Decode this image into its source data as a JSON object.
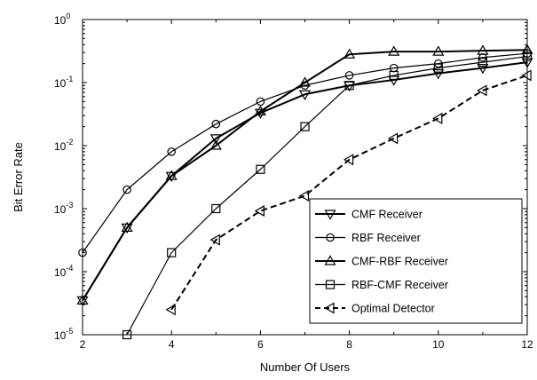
{
  "chart_data": {
    "type": "line",
    "xlabel": "Number Of Users",
    "ylabel": "Bit Error Rate",
    "xlim": [
      2,
      12
    ],
    "ylim": [
      1e-05,
      1
    ],
    "yscale": "log",
    "x_ticks": [
      2,
      4,
      6,
      8,
      10,
      12
    ],
    "y_ticks": [
      {
        "value": 1e-05,
        "base": "10",
        "exp": "-5"
      },
      {
        "value": 0.0001,
        "base": "10",
        "exp": "-4"
      },
      {
        "value": 0.001,
        "base": "10",
        "exp": "-3"
      },
      {
        "value": 0.01,
        "base": "10",
        "exp": "-2"
      },
      {
        "value": 0.1,
        "base": "10",
        "exp": "-1"
      },
      {
        "value": 1,
        "base": "10",
        "exp": "0"
      }
    ],
    "grid": false,
    "legend_position": "bottom-right",
    "series": [
      {
        "name": "CMF Receiver",
        "marker": "triangle-down",
        "dashed": false,
        "thick": true,
        "x": [
          2,
          3,
          4,
          5,
          6,
          7,
          8,
          9,
          10,
          11,
          12
        ],
        "y": [
          3.5e-05,
          0.0005,
          0.0033,
          0.013,
          0.033,
          0.065,
          0.09,
          0.11,
          0.14,
          0.17,
          0.21
        ]
      },
      {
        "name": "RBF Receiver",
        "marker": "circle",
        "dashed": false,
        "thick": false,
        "x": [
          2,
          3,
          4,
          5,
          6,
          7,
          8,
          9,
          10,
          11,
          12
        ],
        "y": [
          0.0002,
          0.002,
          0.008,
          0.022,
          0.05,
          0.09,
          0.13,
          0.17,
          0.2,
          0.25,
          0.29
        ]
      },
      {
        "name": "CMF-RBF Receiver",
        "marker": "triangle-up",
        "dashed": false,
        "thick": true,
        "x": [
          2,
          3,
          4,
          5,
          6,
          7,
          8,
          9,
          10,
          11,
          12
        ],
        "y": [
          3.5e-05,
          0.0005,
          0.0033,
          0.01,
          0.035,
          0.1,
          0.28,
          0.31,
          0.31,
          0.32,
          0.33
        ]
      },
      {
        "name": "RBF-CMF Receiver",
        "marker": "square",
        "dashed": false,
        "thick": false,
        "x": [
          3,
          4,
          5,
          6,
          7,
          8,
          9,
          10,
          11,
          12
        ],
        "y": [
          1e-05,
          0.0002,
          0.001,
          0.0042,
          0.02,
          0.09,
          0.13,
          0.17,
          0.21,
          0.26
        ]
      },
      {
        "name": "Optimal Detector",
        "marker": "triangle-left",
        "dashed": true,
        "thick": true,
        "x": [
          4,
          5,
          6,
          7,
          8,
          9,
          10,
          11,
          12
        ],
        "y": [
          2.5e-05,
          0.00032,
          0.00092,
          0.0016,
          0.006,
          0.013,
          0.027,
          0.075,
          0.13
        ]
      }
    ]
  }
}
